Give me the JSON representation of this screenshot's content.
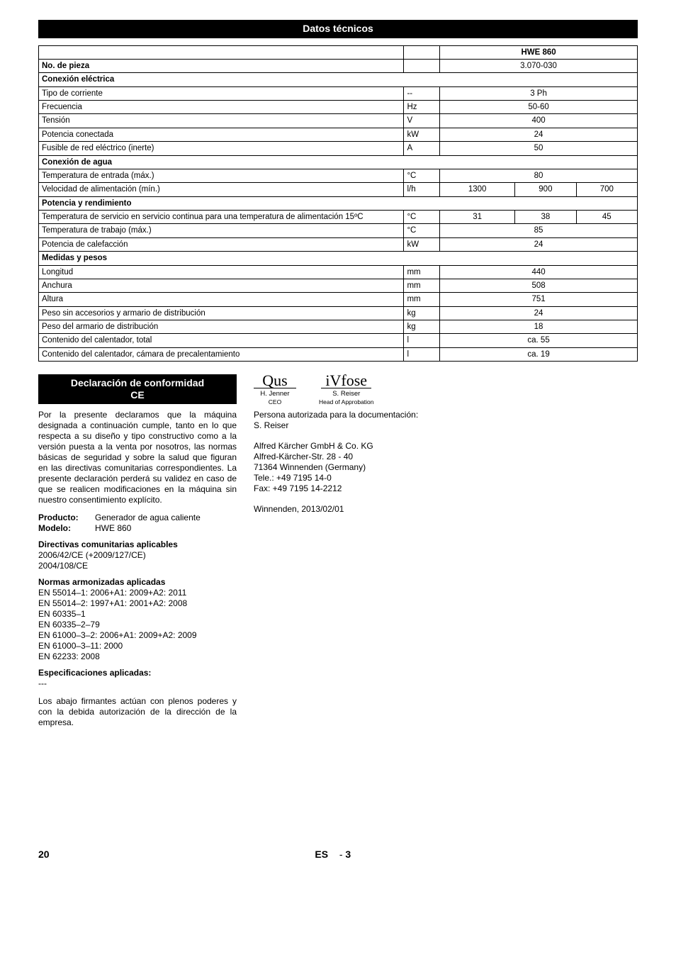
{
  "sectionBar": "Datos técnicos",
  "table": {
    "model_header": "HWE 860",
    "rows": [
      {
        "type": "row",
        "label": "No. de pieza",
        "bold": true,
        "unit": "",
        "v": [
          "3.070-030"
        ],
        "span": 3
      },
      {
        "type": "header",
        "label": "Conexión eléctrica"
      },
      {
        "type": "row",
        "label": "Tipo de corriente",
        "unit": "--",
        "v": [
          "3 Ph"
        ],
        "span": 3
      },
      {
        "type": "row",
        "label": "Frecuencia",
        "unit": "Hz",
        "v": [
          "50-60"
        ],
        "span": 3
      },
      {
        "type": "row",
        "label": "Tensión",
        "unit": "V",
        "v": [
          "400"
        ],
        "span": 3
      },
      {
        "type": "row",
        "label": "Potencia conectada",
        "unit": "kW",
        "v": [
          "24"
        ],
        "span": 3
      },
      {
        "type": "row",
        "label": "Fusible de red eléctrico (inerte)",
        "unit": "A",
        "v": [
          "50"
        ],
        "span": 3
      },
      {
        "type": "header",
        "label": "Conexión de agua"
      },
      {
        "type": "row",
        "label": "Temperatura de entrada (máx.)",
        "unit": "°C",
        "v": [
          "80"
        ],
        "span": 3
      },
      {
        "type": "row",
        "label": "Velocidad de alimentación (mín.)",
        "unit": "l/h",
        "v": [
          "1300",
          "900",
          "700"
        ]
      },
      {
        "type": "header",
        "label": "Potencia y rendimiento"
      },
      {
        "type": "row",
        "label": "Temperatura de servicio en servicio continua para una temperatura de alimentación 15ºC",
        "unit": "°C",
        "v": [
          "31",
          "38",
          "45"
        ]
      },
      {
        "type": "row",
        "label": "Temperatura de trabajo (máx.)",
        "unit": "°C",
        "v": [
          "85"
        ],
        "span": 3
      },
      {
        "type": "row",
        "label": "Potencia de calefacción",
        "unit": "kW",
        "v": [
          "24"
        ],
        "span": 3
      },
      {
        "type": "header",
        "label": "Medidas y pesos"
      },
      {
        "type": "row",
        "label": "Longitud",
        "unit": "mm",
        "v": [
          "440"
        ],
        "span": 3
      },
      {
        "type": "row",
        "label": "Anchura",
        "unit": "mm",
        "v": [
          "508"
        ],
        "span": 3
      },
      {
        "type": "row",
        "label": "Altura",
        "unit": "mm",
        "v": [
          "751"
        ],
        "span": 3
      },
      {
        "type": "row",
        "label": "Peso sin accesorios y armario de distribución",
        "unit": "kg",
        "v": [
          "24"
        ],
        "span": 3
      },
      {
        "type": "row",
        "label": "Peso del armario de distribución",
        "unit": "kg",
        "v": [
          "18"
        ],
        "span": 3
      },
      {
        "type": "row",
        "label": "Contenido del calentador, total",
        "unit": "l",
        "v": [
          "ca. 55"
        ],
        "span": 3
      },
      {
        "type": "row",
        "label": "Contenido del calentador, cámara de precalentamiento",
        "unit": "l",
        "v": [
          "ca. 19"
        ],
        "span": 3
      }
    ]
  },
  "decl": {
    "title1": "Declaración de conformidad",
    "title2": "CE",
    "intro": "Por la presente declaramos que la máquina designada a continuación cumple, tanto en lo que respecta a su diseño y tipo constructivo como a la versión puesta a la venta por nosotros, las normas básicas de seguridad y sobre la salud que figuran en las directivas comunitarias correspondientes. La presente declaración perderá su validez en caso de que se realicen modificaciones en la máquina sin nuestro consentimiento explícito.",
    "prod_k": "Producto:",
    "prod_v": "Generador de agua caliente",
    "mod_k": "Modelo:",
    "mod_v": "HWE 860",
    "dir_title": "Directivas comunitarias aplicables",
    "dir1": "2006/42/CE (+2009/127/CE)",
    "dir2": "2004/108/CE",
    "norm_title": "Normas armonizadas aplicadas",
    "norms": [
      "EN 55014–1: 2006+A1: 2009+A2: 2011",
      "EN 55014–2: 1997+A1: 2001+A2: 2008",
      "EN 60335–1",
      "EN 60335–2–79",
      "EN 61000–3–2: 2006+A1: 2009+A2: 2009",
      "EN 61000–3–11: 2000",
      "EN 62233: 2008"
    ],
    "spec_title": "Especificaciones aplicadas:",
    "spec_val": "---",
    "signers": "Los abajo firmantes actúan con plenos poderes y con la debida autorización de la dirección de la empresa."
  },
  "mid": {
    "sig1_name": "H. Jenner",
    "sig1_role": "CEO",
    "sig2_name": "S. Reiser",
    "sig2_role": "Head of Approbation",
    "auth_line": "Persona autorizada para la documentación:",
    "auth_name": "S. Reiser",
    "addr1": "Alfred Kärcher GmbH & Co. KG",
    "addr2": "Alfred-Kärcher-Str. 28 - 40",
    "addr3": "71364 Winnenden (Germany)",
    "addr4": "Tele.: +49 7195 14-0",
    "addr5": "Fax: +49 7195 14-2212",
    "date": "Winnenden, 2013/02/01"
  },
  "footer": {
    "page": "20",
    "lang": "ES",
    "seq": "3"
  }
}
